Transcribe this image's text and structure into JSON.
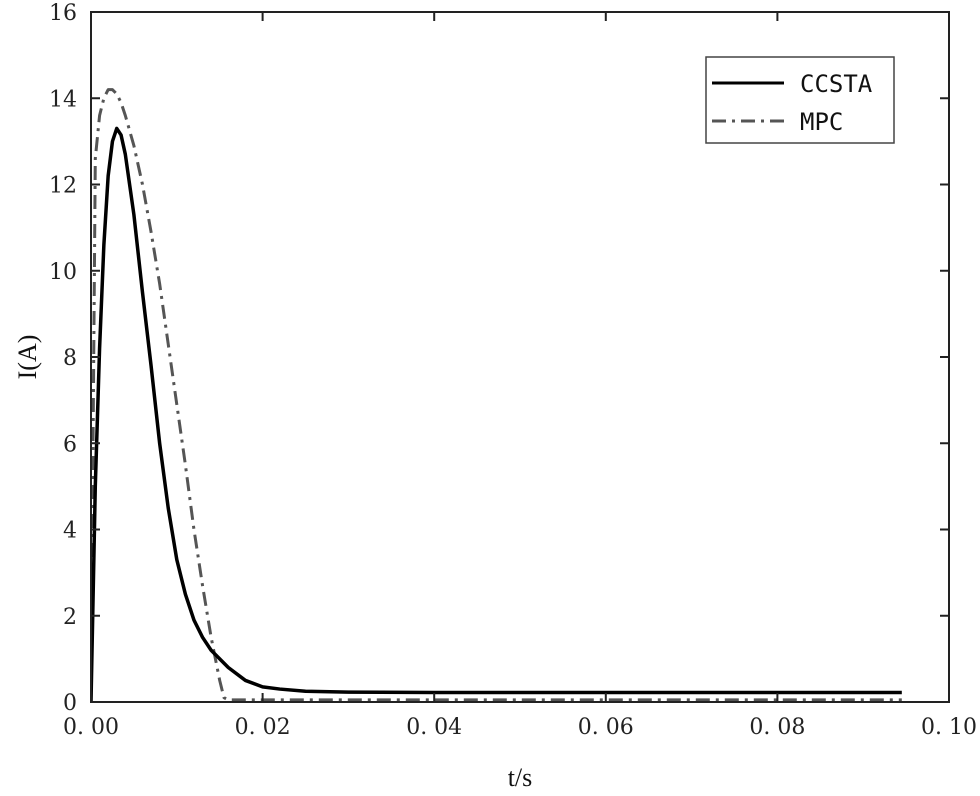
{
  "chart_data": {
    "type": "line",
    "xlabel": "t/s",
    "ylabel": "I(A)",
    "xlim": [
      0,
      0.1
    ],
    "ylim": [
      0,
      16
    ],
    "x_ticks": [
      0,
      0.02,
      0.04,
      0.06,
      0.08,
      0.1
    ],
    "x_tick_labels": [
      "0. 00",
      "0. 02",
      "0. 04",
      "0. 06",
      "0. 08",
      "0. 10"
    ],
    "y_ticks": [
      0,
      2,
      4,
      6,
      8,
      10,
      12,
      14,
      16
    ],
    "y_tick_labels": [
      "0",
      "2",
      "4",
      "6",
      "8",
      "10",
      "12",
      "14",
      "16"
    ],
    "grid": false,
    "legend_position": "top-right",
    "series": [
      {
        "name": "CCSTA",
        "style": "solid",
        "color": "#000000",
        "x": [
          0,
          0.0005,
          0.001,
          0.0015,
          0.002,
          0.0025,
          0.003,
          0.0035,
          0.004,
          0.005,
          0.006,
          0.007,
          0.008,
          0.009,
          0.01,
          0.011,
          0.012,
          0.013,
          0.014,
          0.015,
          0.016,
          0.018,
          0.02,
          0.022,
          0.025,
          0.03,
          0.04,
          0.05,
          0.06,
          0.07,
          0.08,
          0.09,
          0.0945
        ],
        "y": [
          0,
          5,
          8.2,
          10.6,
          12.2,
          13.0,
          13.3,
          13.15,
          12.7,
          11.3,
          9.5,
          7.8,
          6.0,
          4.5,
          3.3,
          2.5,
          1.9,
          1.5,
          1.2,
          1.0,
          0.8,
          0.5,
          0.35,
          0.3,
          0.25,
          0.23,
          0.22,
          0.22,
          0.22,
          0.22,
          0.22,
          0.22,
          0.22
        ]
      },
      {
        "name": "MPC",
        "style": "dash-dot",
        "color": "#555555",
        "x": [
          0,
          0.0005,
          0.001,
          0.0015,
          0.002,
          0.0025,
          0.003,
          0.0035,
          0.004,
          0.005,
          0.006,
          0.007,
          0.008,
          0.009,
          0.01,
          0.011,
          0.012,
          0.013,
          0.014,
          0.015,
          0.0155,
          0.016,
          0.02,
          0.03,
          0.04,
          0.05,
          0.06,
          0.07,
          0.08,
          0.09,
          0.0945
        ],
        "y": [
          0,
          12.6,
          13.6,
          14.0,
          14.2,
          14.2,
          14.1,
          13.9,
          13.6,
          12.9,
          12.0,
          10.9,
          9.7,
          8.3,
          6.9,
          5.5,
          4.0,
          2.7,
          1.5,
          0.5,
          0.1,
          0.05,
          0.05,
          0.05,
          0.05,
          0.05,
          0.05,
          0.05,
          0.05,
          0.05,
          0.05
        ]
      }
    ]
  }
}
